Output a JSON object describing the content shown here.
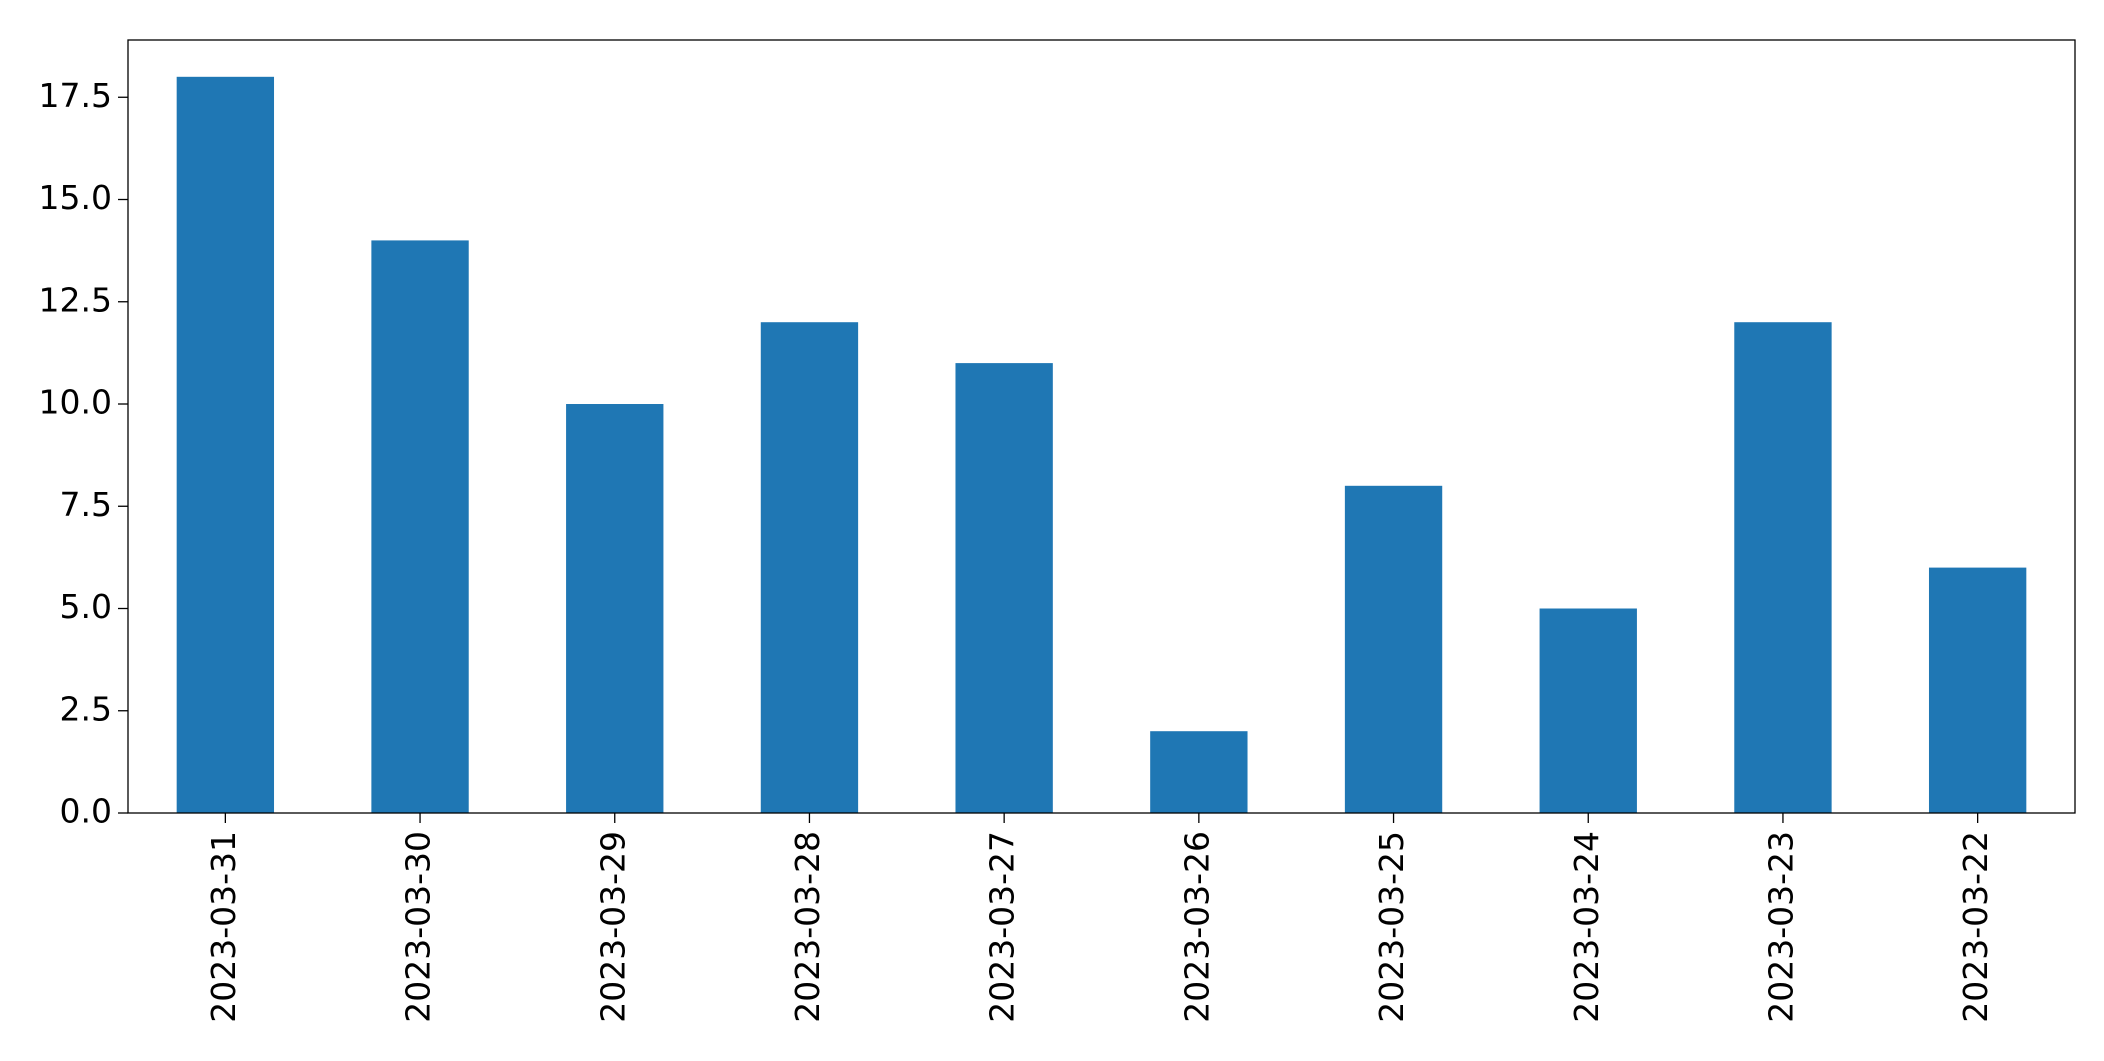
{
  "chart_data": {
    "type": "bar",
    "categories": [
      "2023-03-31",
      "2023-03-30",
      "2023-03-29",
      "2023-03-28",
      "2023-03-27",
      "2023-03-26",
      "2023-03-25",
      "2023-03-24",
      "2023-03-23",
      "2023-03-22"
    ],
    "values": [
      18,
      14,
      10,
      12,
      11,
      2,
      8,
      5,
      12,
      6
    ],
    "color": "#1f77b4",
    "ylim": [
      0,
      18.9
    ],
    "yticks": [
      {
        "value": 0,
        "label": "0.0"
      },
      2.5,
      {
        "value": 5,
        "label": "5.0"
      },
      7.5,
      {
        "value": 10,
        "label": "10.0"
      },
      12.5,
      {
        "value": 15,
        "label": "15.0"
      },
      17.5
    ],
    "grid": false
  }
}
